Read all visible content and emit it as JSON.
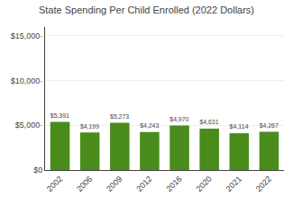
{
  "chart_data": {
    "type": "bar",
    "title": "State Spending Per Child Enrolled (2022 Dollars)",
    "categories": [
      "2002",
      "2006",
      "2009",
      "2012",
      "2016",
      "2020",
      "2021",
      "2022"
    ],
    "values": [
      5391,
      4199,
      5273,
      4243,
      4970,
      4631,
      4114,
      4267
    ],
    "value_labels": [
      "$5,391",
      "$4,199",
      "$5,273",
      "$4,243",
      "$4,970",
      "$4,631",
      "$4,114",
      "$4,267"
    ],
    "data_labels": true,
    "color": "#4a8c1c",
    "ylim": [
      0,
      16000
    ],
    "yticks": [
      {
        "value": 0,
        "label": "$0"
      },
      {
        "value": 5000,
        "label": "$5,000·"
      },
      {
        "value": 10000,
        "label": "$10,000·"
      },
      {
        "value": 15000,
        "label": "$15,000·"
      }
    ],
    "grid": true
  }
}
